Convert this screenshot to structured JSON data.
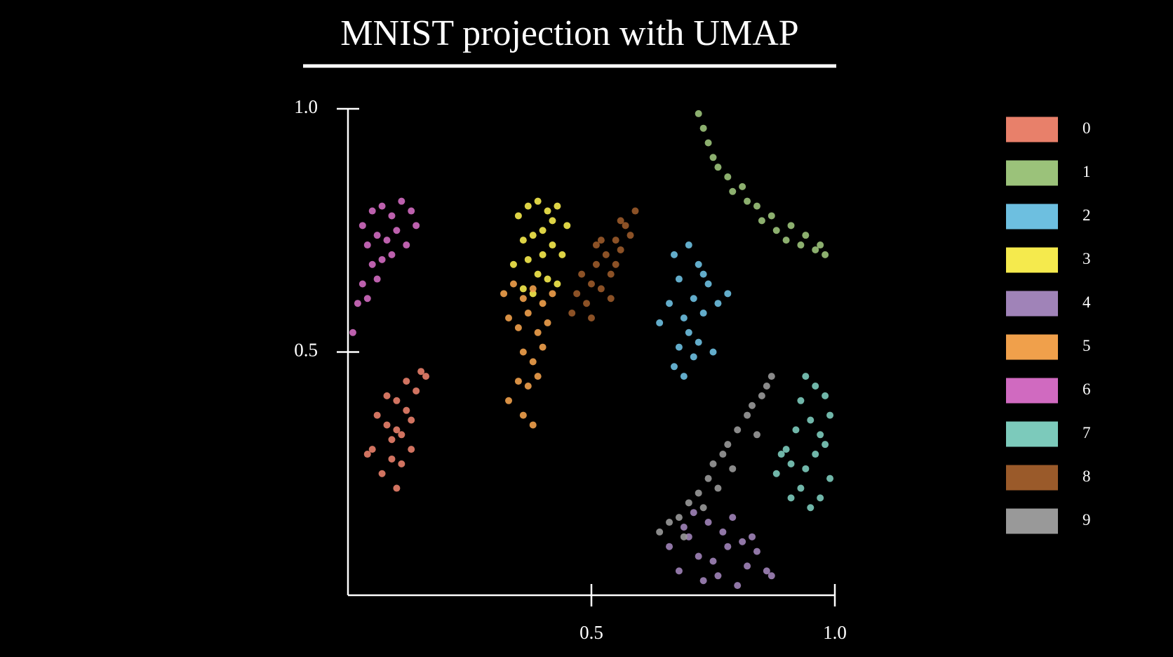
{
  "chart_data": {
    "type": "scatter",
    "title": "MNIST projection with UMAP",
    "xlim": [
      0,
      1
    ],
    "ylim": [
      0,
      1
    ],
    "xticks": [
      0.5,
      {
        "value": 1,
        "label": "1.0"
      }
    ],
    "yticks": [
      0.5,
      {
        "value": 1,
        "label": "1.0"
      }
    ],
    "legend": "right",
    "series": [
      {
        "name": "0",
        "color": "#e8806a",
        "x": [
          0.05,
          0.08,
          0.1,
          0.12,
          0.14,
          0.07,
          0.09,
          0.11,
          0.13,
          0.06,
          0.1,
          0.12,
          0.15,
          0.08,
          0.09,
          0.11,
          0.04,
          0.13,
          0.16,
          0.1
        ],
        "values": [
          0.3,
          0.35,
          0.4,
          0.38,
          0.42,
          0.25,
          0.28,
          0.33,
          0.3,
          0.37,
          0.22,
          0.44,
          0.46,
          0.41,
          0.32,
          0.27,
          0.29,
          0.36,
          0.45,
          0.34
        ]
      },
      {
        "name": "1",
        "color": "#9bc27a",
        "x": [
          0.72,
          0.73,
          0.74,
          0.75,
          0.76,
          0.78,
          0.79,
          0.81,
          0.82,
          0.84,
          0.85,
          0.87,
          0.88,
          0.9,
          0.91,
          0.93,
          0.94,
          0.96,
          0.97,
          0.98
        ],
        "values": [
          0.99,
          0.96,
          0.93,
          0.9,
          0.88,
          0.86,
          0.83,
          0.84,
          0.81,
          0.8,
          0.77,
          0.78,
          0.75,
          0.73,
          0.76,
          0.72,
          0.74,
          0.71,
          0.72,
          0.7
        ]
      },
      {
        "name": "2",
        "color": "#6dbfe0",
        "x": [
          0.67,
          0.7,
          0.72,
          0.68,
          0.74,
          0.71,
          0.66,
          0.73,
          0.69,
          0.76,
          0.7,
          0.72,
          0.64,
          0.75,
          0.68,
          0.67,
          0.71,
          0.73,
          0.69,
          0.78
        ],
        "values": [
          0.7,
          0.72,
          0.68,
          0.65,
          0.64,
          0.61,
          0.6,
          0.58,
          0.57,
          0.6,
          0.54,
          0.52,
          0.56,
          0.5,
          0.51,
          0.47,
          0.49,
          0.66,
          0.45,
          0.62
        ]
      },
      {
        "name": "3",
        "color": "#f5ea4d",
        "x": [
          0.35,
          0.37,
          0.39,
          0.41,
          0.43,
          0.45,
          0.36,
          0.38,
          0.4,
          0.42,
          0.44,
          0.34,
          0.37,
          0.39,
          0.41,
          0.43,
          0.4,
          0.38,
          0.42,
          0.36
        ],
        "values": [
          0.78,
          0.8,
          0.81,
          0.79,
          0.8,
          0.76,
          0.73,
          0.74,
          0.75,
          0.72,
          0.7,
          0.68,
          0.69,
          0.66,
          0.65,
          0.64,
          0.7,
          0.62,
          0.77,
          0.63
        ]
      },
      {
        "name": "4",
        "color": "#a083b8",
        "x": [
          0.66,
          0.68,
          0.7,
          0.72,
          0.74,
          0.76,
          0.78,
          0.8,
          0.82,
          0.84,
          0.86,
          0.69,
          0.73,
          0.77,
          0.81,
          0.71,
          0.75,
          0.79,
          0.83,
          0.87
        ],
        "values": [
          0.1,
          0.05,
          0.12,
          0.08,
          0.15,
          0.04,
          0.1,
          0.02,
          0.06,
          0.09,
          0.05,
          0.14,
          0.03,
          0.13,
          0.11,
          0.17,
          0.07,
          0.16,
          0.12,
          0.04
        ]
      },
      {
        "name": "5",
        "color": "#f0a04b",
        "x": [
          0.32,
          0.34,
          0.36,
          0.38,
          0.4,
          0.42,
          0.33,
          0.35,
          0.37,
          0.39,
          0.41,
          0.36,
          0.38,
          0.4,
          0.35,
          0.37,
          0.39,
          0.33,
          0.36,
          0.38
        ],
        "values": [
          0.62,
          0.64,
          0.61,
          0.63,
          0.6,
          0.62,
          0.57,
          0.55,
          0.58,
          0.54,
          0.56,
          0.5,
          0.48,
          0.51,
          0.44,
          0.43,
          0.45,
          0.4,
          0.37,
          0.35
        ]
      },
      {
        "name": "6",
        "color": "#d06ac0",
        "x": [
          0.03,
          0.05,
          0.07,
          0.09,
          0.11,
          0.13,
          0.14,
          0.04,
          0.06,
          0.08,
          0.1,
          0.12,
          0.05,
          0.07,
          0.09,
          0.03,
          0.06,
          0.02,
          0.04,
          0.01
        ],
        "values": [
          0.76,
          0.79,
          0.8,
          0.78,
          0.81,
          0.79,
          0.76,
          0.72,
          0.74,
          0.73,
          0.75,
          0.72,
          0.68,
          0.69,
          0.7,
          0.64,
          0.65,
          0.6,
          0.61,
          0.54
        ]
      },
      {
        "name": "7",
        "color": "#7ccabb",
        "x": [
          0.94,
          0.96,
          0.98,
          0.93,
          0.99,
          0.95,
          0.97,
          0.92,
          0.9,
          0.88,
          0.91,
          0.93,
          0.95,
          0.97,
          0.99,
          0.89,
          0.94,
          0.96,
          0.91,
          0.98
        ],
        "values": [
          0.45,
          0.43,
          0.41,
          0.4,
          0.37,
          0.36,
          0.33,
          0.34,
          0.3,
          0.25,
          0.27,
          0.22,
          0.18,
          0.2,
          0.24,
          0.29,
          0.26,
          0.29,
          0.2,
          0.31
        ]
      },
      {
        "name": "8",
        "color": "#9a5a2a",
        "x": [
          0.46,
          0.47,
          0.49,
          0.5,
          0.51,
          0.52,
          0.53,
          0.54,
          0.55,
          0.56,
          0.57,
          0.58,
          0.59,
          0.48,
          0.5,
          0.52,
          0.54,
          0.56,
          0.51,
          0.55
        ],
        "values": [
          0.58,
          0.62,
          0.6,
          0.64,
          0.68,
          0.63,
          0.7,
          0.66,
          0.73,
          0.71,
          0.76,
          0.74,
          0.79,
          0.66,
          0.57,
          0.73,
          0.61,
          0.77,
          0.72,
          0.68
        ]
      },
      {
        "name": "9",
        "color": "#999999",
        "x": [
          0.64,
          0.66,
          0.68,
          0.7,
          0.72,
          0.74,
          0.75,
          0.77,
          0.78,
          0.8,
          0.82,
          0.83,
          0.85,
          0.86,
          0.87,
          0.69,
          0.73,
          0.76,
          0.79,
          0.84
        ],
        "values": [
          0.13,
          0.15,
          0.16,
          0.19,
          0.21,
          0.24,
          0.27,
          0.29,
          0.31,
          0.34,
          0.37,
          0.39,
          0.41,
          0.43,
          0.45,
          0.12,
          0.18,
          0.22,
          0.26,
          0.33
        ]
      }
    ]
  }
}
